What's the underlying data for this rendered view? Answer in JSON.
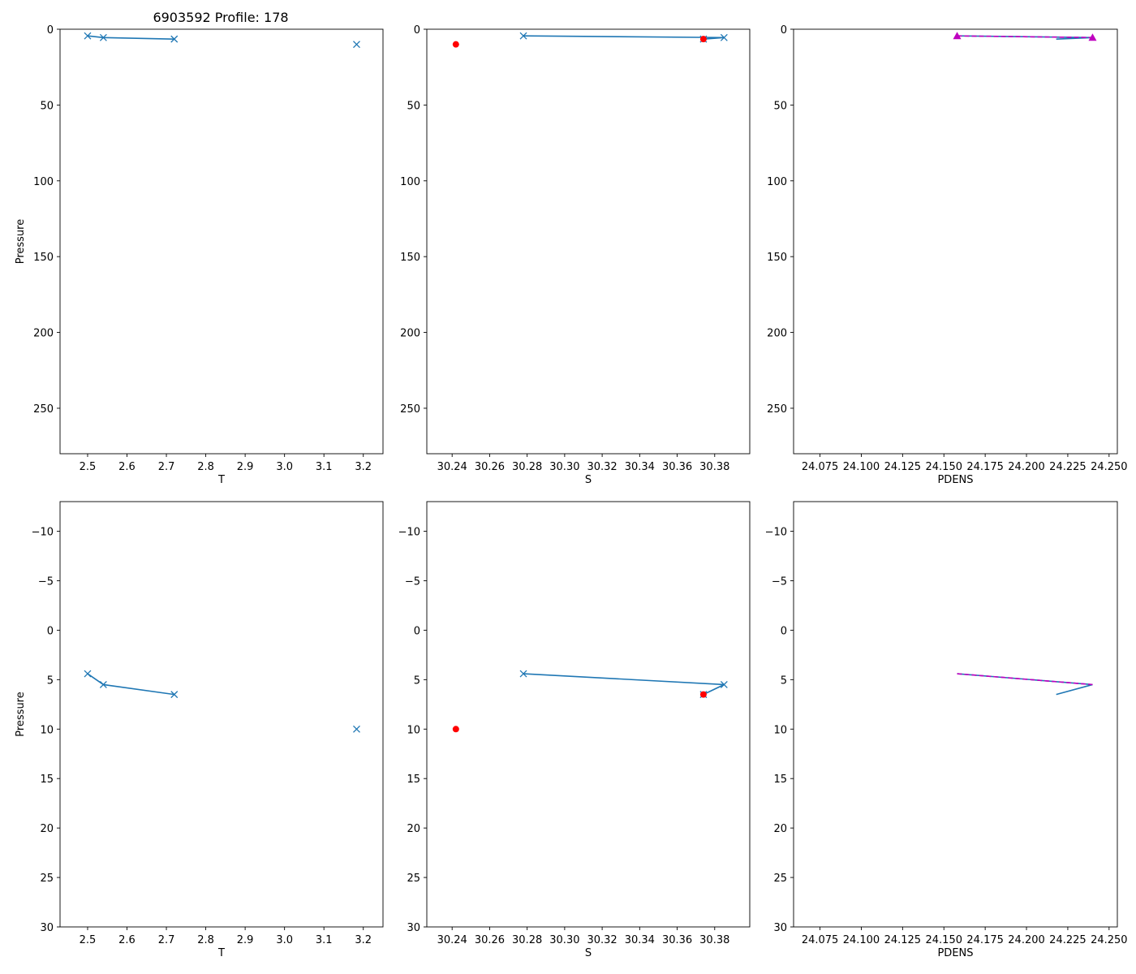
{
  "title": "6903592 Profile: 178",
  "colors": {
    "series_blue": "#1f77b4",
    "flag_red": "#ff0000",
    "density_magenta": "#bf00bf"
  },
  "chart_data": [
    {
      "type": "line",
      "panel": "top-left",
      "title": "6903592 Profile: 178",
      "xlabel": "T",
      "ylabel": "Pressure",
      "xlim": [
        2.43,
        3.25
      ],
      "ylim": [
        280,
        0
      ],
      "xticks": [
        "2.5",
        "2.6",
        "2.7",
        "2.8",
        "2.9",
        "3.0",
        "3.1",
        "3.2"
      ],
      "yticks": [
        "0",
        "50",
        "100",
        "150",
        "200",
        "250"
      ],
      "series": [
        {
          "name": "profile",
          "style": "line-x",
          "x": [
            2.5,
            2.54,
            2.72
          ],
          "y": [
            4.4,
            5.5,
            6.5
          ]
        },
        {
          "name": "profile-isolated",
          "style": "x",
          "x": [
            3.183
          ],
          "y": [
            10
          ]
        }
      ]
    },
    {
      "type": "line",
      "panel": "top-middle",
      "xlabel": "S",
      "ylabel": "",
      "xlim": [
        30.2265,
        30.3987
      ],
      "ylim": [
        280,
        0
      ],
      "xticks": [
        "30.24",
        "30.26",
        "30.28",
        "30.30",
        "30.32",
        "30.34",
        "30.36",
        "30.38"
      ],
      "yticks": [
        "0",
        "50",
        "100",
        "150",
        "200",
        "250"
      ],
      "series": [
        {
          "name": "profile",
          "style": "line-x",
          "x": [
            30.278,
            30.385,
            30.374
          ],
          "y": [
            4.4,
            5.5,
            6.5
          ]
        },
        {
          "name": "flagged",
          "style": "red-dot",
          "x": [
            30.374,
            30.242
          ],
          "y": [
            6.5,
            10
          ]
        }
      ]
    },
    {
      "type": "line",
      "panel": "top-right",
      "xlabel": "PDENS",
      "ylabel": "",
      "xlim": [
        24.059,
        24.255
      ],
      "ylim": [
        280,
        0
      ],
      "xticks": [
        "24.075",
        "24.100",
        "24.125",
        "24.150",
        "24.175",
        "24.200",
        "24.225",
        "24.250"
      ],
      "yticks": [
        "0",
        "50",
        "100",
        "150",
        "200",
        "250"
      ],
      "series": [
        {
          "name": "profile",
          "style": "line",
          "x": [
            24.158,
            24.24,
            24.218
          ],
          "y": [
            4.4,
            5.5,
            6.5
          ]
        },
        {
          "name": "density-check",
          "style": "magenta-dashed-triangle",
          "x": [
            24.158,
            24.24
          ],
          "y": [
            4.4,
            5.5
          ]
        }
      ]
    },
    {
      "type": "line",
      "panel": "bottom-left",
      "xlabel": "T",
      "ylabel": "Pressure",
      "xlim": [
        2.43,
        3.25
      ],
      "ylim": [
        30,
        -13
      ],
      "xticks": [
        "2.5",
        "2.6",
        "2.7",
        "2.8",
        "2.9",
        "3.0",
        "3.1",
        "3.2"
      ],
      "yticks": [
        "−10",
        "−5",
        "0",
        "5",
        "10",
        "15",
        "20",
        "25",
        "30"
      ],
      "series": [
        {
          "name": "profile",
          "style": "line-x",
          "x": [
            2.5,
            2.54,
            2.72
          ],
          "y": [
            4.4,
            5.5,
            6.5
          ]
        },
        {
          "name": "profile-isolated",
          "style": "x",
          "x": [
            3.183
          ],
          "y": [
            10
          ]
        }
      ]
    },
    {
      "type": "line",
      "panel": "bottom-middle",
      "xlabel": "S",
      "ylabel": "",
      "xlim": [
        30.2265,
        30.3987
      ],
      "ylim": [
        30,
        -13
      ],
      "xticks": [
        "30.24",
        "30.26",
        "30.28",
        "30.30",
        "30.32",
        "30.34",
        "30.36",
        "30.38"
      ],
      "yticks": [
        "−10",
        "−5",
        "0",
        "5",
        "10",
        "15",
        "20",
        "25",
        "30"
      ],
      "series": [
        {
          "name": "profile",
          "style": "line-x",
          "x": [
            30.278,
            30.385,
            30.374
          ],
          "y": [
            4.4,
            5.5,
            6.5
          ]
        },
        {
          "name": "flagged",
          "style": "red-dot",
          "x": [
            30.374,
            30.242
          ],
          "y": [
            6.5,
            10
          ]
        }
      ]
    },
    {
      "type": "line",
      "panel": "bottom-right",
      "xlabel": "PDENS",
      "ylabel": "",
      "xlim": [
        24.059,
        24.255
      ],
      "ylim": [
        30,
        -13
      ],
      "xticks": [
        "24.075",
        "24.100",
        "24.125",
        "24.150",
        "24.175",
        "24.200",
        "24.225",
        "24.250"
      ],
      "yticks": [
        "−10",
        "−5",
        "0",
        "5",
        "10",
        "15",
        "20",
        "25",
        "30"
      ],
      "series": [
        {
          "name": "profile",
          "style": "line",
          "x": [
            24.158,
            24.24,
            24.218
          ],
          "y": [
            4.4,
            5.5,
            6.5
          ]
        },
        {
          "name": "density-check",
          "style": "magenta-dashed",
          "x": [
            24.158,
            24.24
          ],
          "y": [
            4.4,
            5.5
          ]
        }
      ]
    }
  ]
}
